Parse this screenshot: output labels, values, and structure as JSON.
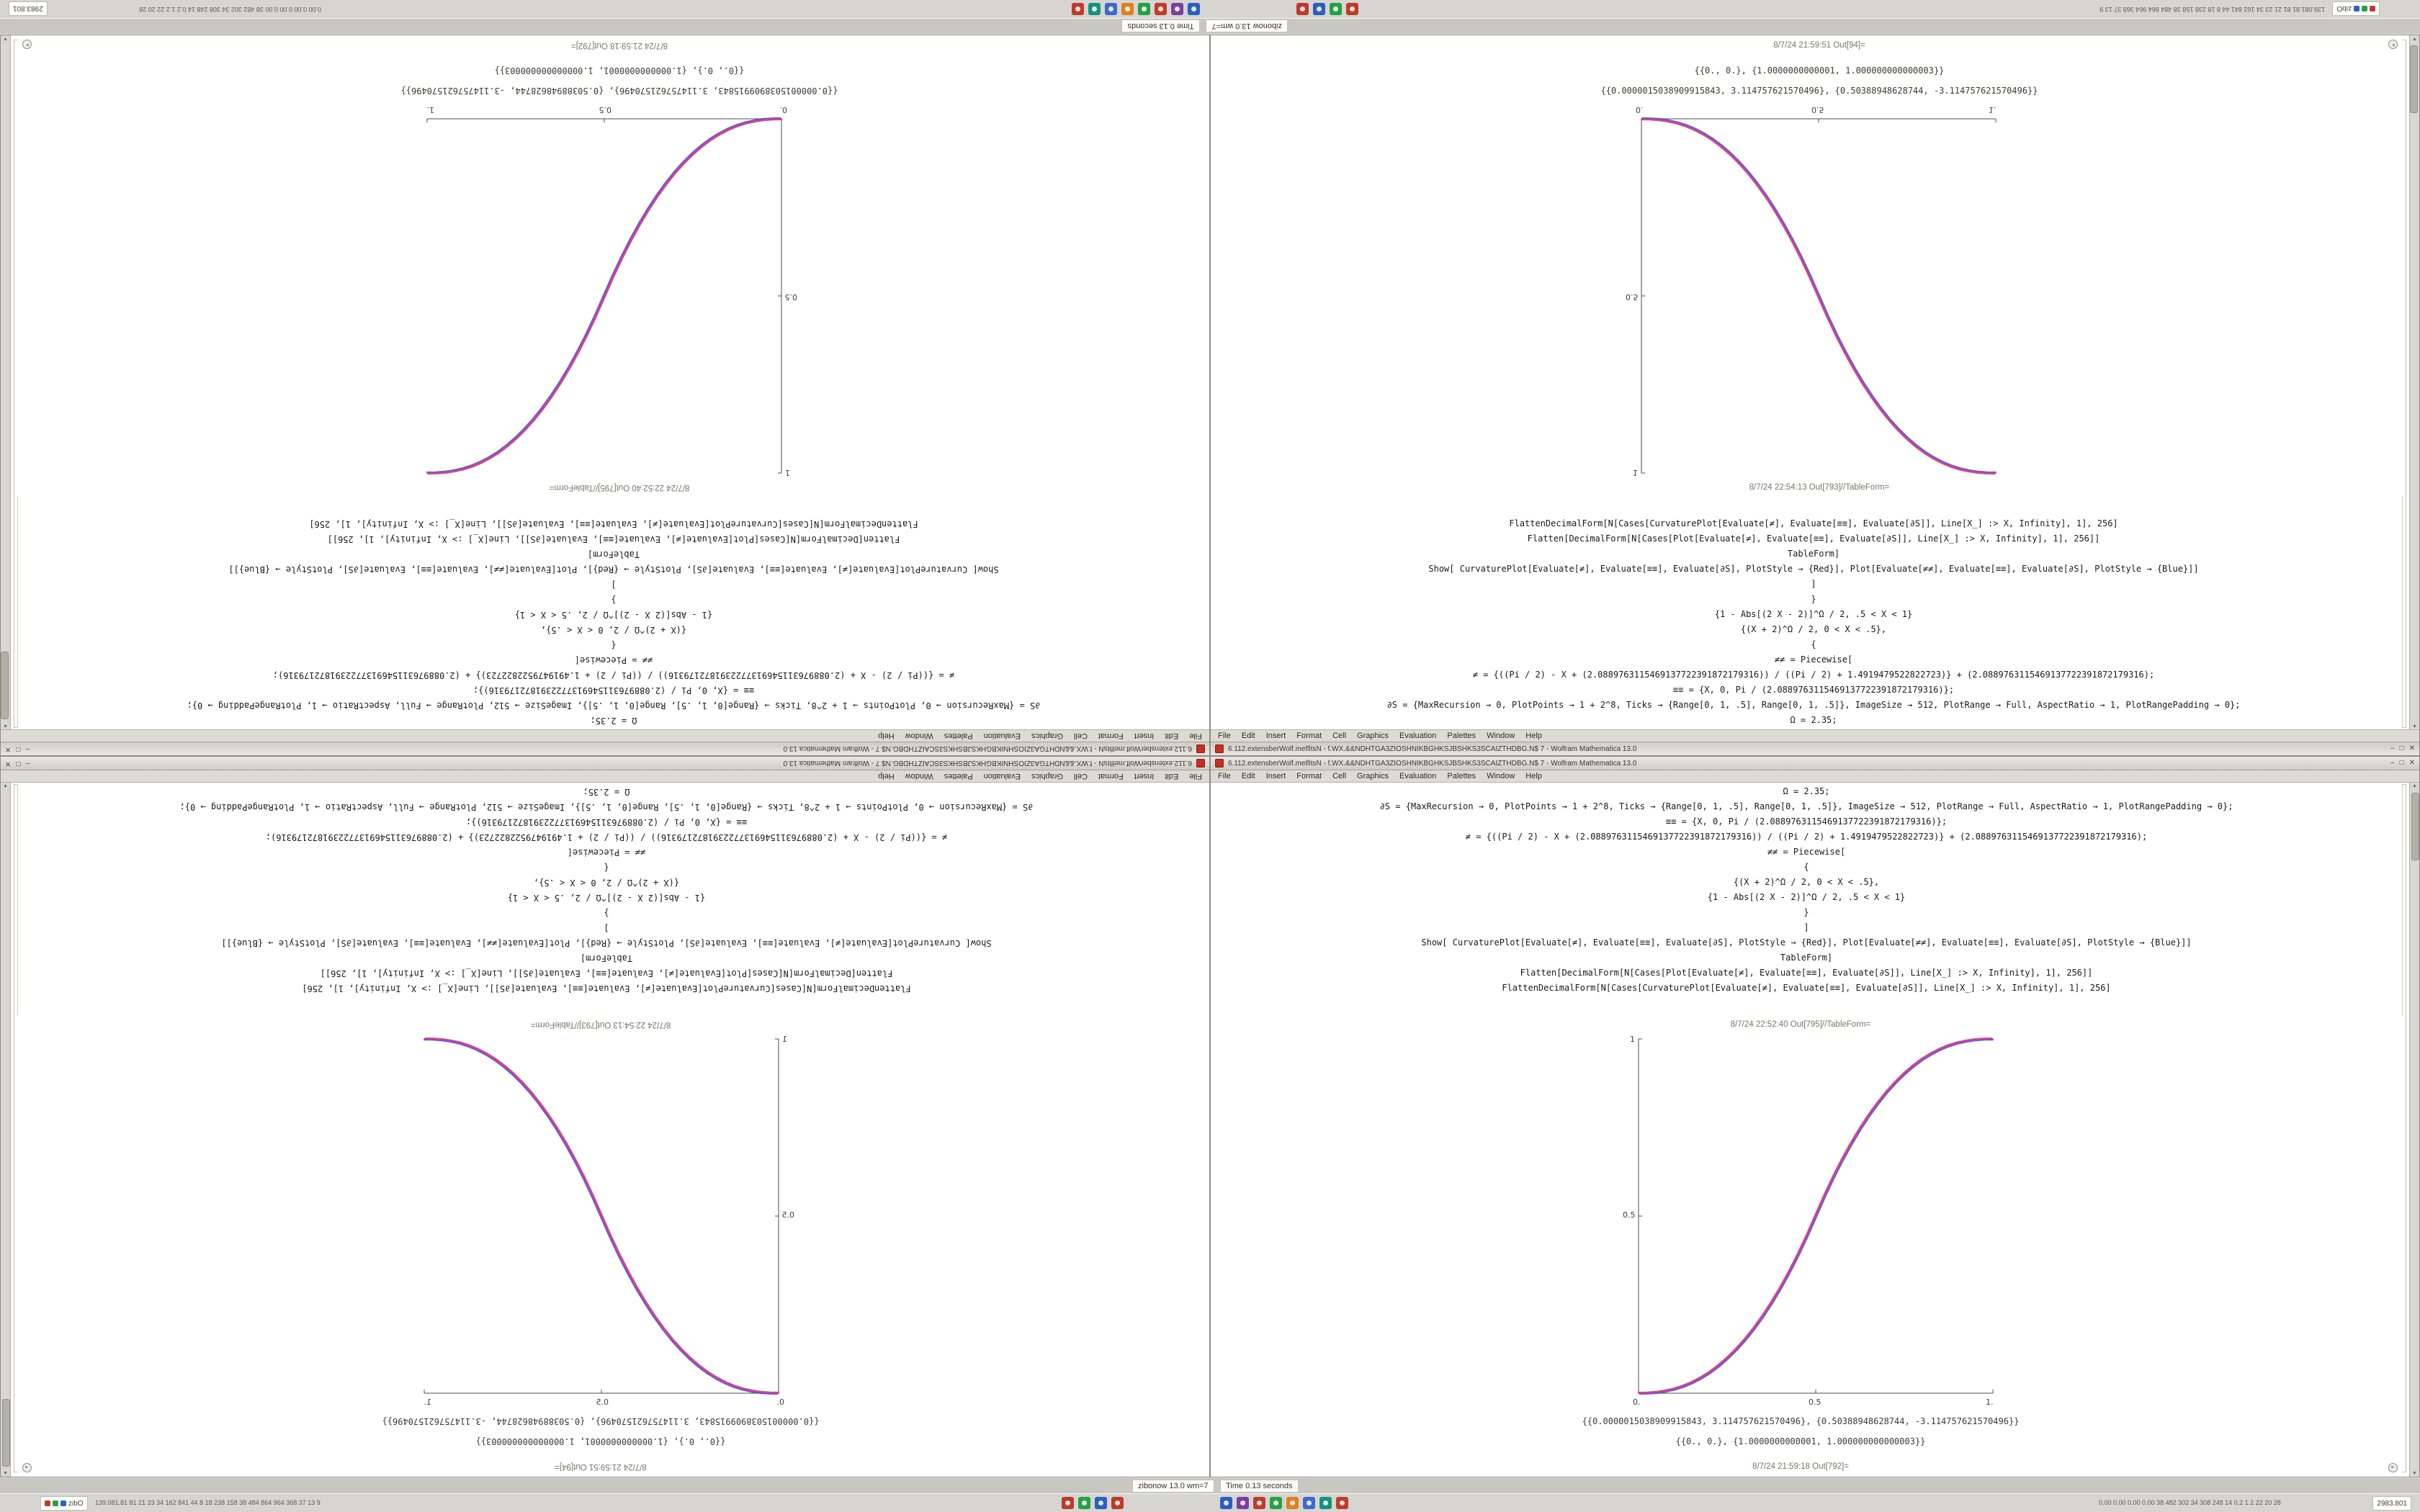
{
  "titlebar": {
    "title": "6.112.extensberWolf.melfitsN - f.WX.&&NDHTGA3ZIOSHNIKBGHKSJBSHKS3SCAIZTHDBG.N$ 7 - Wolfram Mathematica 13.0",
    "buttons": [
      "–",
      "□",
      "✕"
    ]
  },
  "menu": [
    "File",
    "Edit",
    "Insert",
    "Format",
    "Cell",
    "Graphics",
    "Evaluation",
    "Palettes",
    "Window",
    "Help"
  ],
  "notebook": {
    "cells": [
      "Ω = 2.35;",
      "∂S = {MaxRecursion → 0, PlotPoints → 1 + 2^8, Ticks → {Range[0, 1, .5], Range[0, 1, .5]}, ImageSize → 512, PlotRange → Full, AspectRatio → 1, PlotRangePadding → 0};",
      "≡≡ = {X, 0, Pi / (2.0889763115469137722391872179316)};",
      "≠ = {((Pi / 2) - X + (2.0889763115469137722391872179316)) / ((Pi / 2) + 1.4919479522822723)} + (2.0889763115469137722391872179316);",
      "≠≠ = Piecewise[",
      "{",
      "{(X + 2)^Ω / 2, 0 < X < .5},",
      "{1 - Abs[(2 X - 2)]^Ω / 2, .5 < X < 1}",
      "}",
      "]",
      "Show[ CurvaturePlot[Evaluate[≠], Evaluate[≡≡], Evaluate[∂S], PlotStyle → {Red}], Plot[Evaluate[≠≠], Evaluate[≡≡], Evaluate[∂S], PlotStyle → {Blue}]]",
      "TableForm]",
      "Flatten[DecimalForm[N[Cases[Plot[Evaluate[≠], Evaluate[≡≡], Evaluate[∂S]], Line[X_] :> X, Infinity], 1], 256]]",
      "FlattenDecimalForm[N[Cases[CurvaturePlot[Evaluate[≠], Evaluate[≡≡], Evaluate[∂S]], Line[X_] :> X, Infinity], 1], 256]"
    ],
    "outputs": [
      "{{0.0000015038909915843, 3.114757621570496}, {0.50388948628744, -3.114757621570496}}",
      "{{0., 0.}, {1.0000000000001, 1.000000000000003}}"
    ]
  },
  "windows": {
    "right": {
      "out_table_label": "8/7/24 22:52:40 Out[795]//TableForm=",
      "bottom_label": "8/7/24 21:59:18 Out[792]="
    },
    "left": {
      "out_table_label": "8/7/24 22:54:13 Out[793]//TableForm=",
      "bottom_label": "8/7/24 21:59:51 Out[94]="
    }
  },
  "statusbar": {
    "left_text": "zibonow 13.0 wm=7",
    "right_text": "Time 0.13 seconds"
  },
  "taskbar": {
    "badge_text": "zibO",
    "left_stats": "139.081.81 81 21 23 34 162 841 44 8 18 238 158 38 484 864 964 368 37 13 9",
    "right_stats": "0.00 0.00 0.00 0.00 38 482 302 34 308 248 14 0.2 1.2 22 20 28",
    "clock_text": "2983.801",
    "app_icon_colors": [
      "#c0392b",
      "#27a044",
      "#2b5fc0",
      "#c0392b",
      "#2b5fc0",
      "#7a3fa0",
      "#c23b2a",
      "#27a044",
      "#e08020",
      "#3a6ad0",
      "#18917f",
      "#c23b2a"
    ]
  },
  "chart_data": {
    "type": "line",
    "title": "",
    "xlabel": "",
    "ylabel": "",
    "xlim": [
      0,
      1
    ],
    "ylim": [
      0,
      1
    ],
    "xticks": [
      0,
      0.5,
      1
    ],
    "yticks": [
      0.5,
      1
    ],
    "tick_labels": {
      "x": [
        "0.",
        "0.5",
        "1."
      ],
      "y": [
        "0.5",
        "1"
      ]
    },
    "grid": false,
    "legend": "none",
    "axis_color": "#4d4d4d",
    "blend_color": "#bb3fbb",
    "x": [
      0,
      0.025,
      0.05,
      0.075,
      0.1,
      0.125,
      0.15,
      0.175,
      0.2,
      0.225,
      0.25,
      0.275,
      0.3,
      0.325,
      0.35,
      0.375,
      0.4,
      0.425,
      0.45,
      0.475,
      0.5,
      0.525,
      0.55,
      0.575,
      0.6,
      0.625,
      0.65,
      0.675,
      0.7,
      0.725,
      0.75,
      0.775,
      0.8,
      0.825,
      0.85,
      0.875,
      0.9,
      0.925,
      0.95,
      0.975,
      1
    ],
    "values": [
      0,
      0.0004,
      0.0022,
      0.0058,
      0.0114,
      0.0192,
      0.0295,
      0.0424,
      0.058,
      0.0766,
      0.0981,
      0.1227,
      0.1505,
      0.1817,
      0.2162,
      0.2543,
      0.296,
      0.3413,
      0.3903,
      0.4432,
      0.5,
      0.5568,
      0.6097,
      0.6587,
      0.704,
      0.7457,
      0.7838,
      0.8183,
      0.8495,
      0.8773,
      0.9019,
      0.9234,
      0.942,
      0.9576,
      0.9706,
      0.9808,
      0.9886,
      0.9942,
      0.9978,
      0.9996,
      1
    ],
    "series": [
      {
        "name": "CurvaturePlot (Red)",
        "color": "#d42a2a"
      },
      {
        "name": "Plot (Blue)",
        "color": "#2a3fd4"
      }
    ]
  }
}
